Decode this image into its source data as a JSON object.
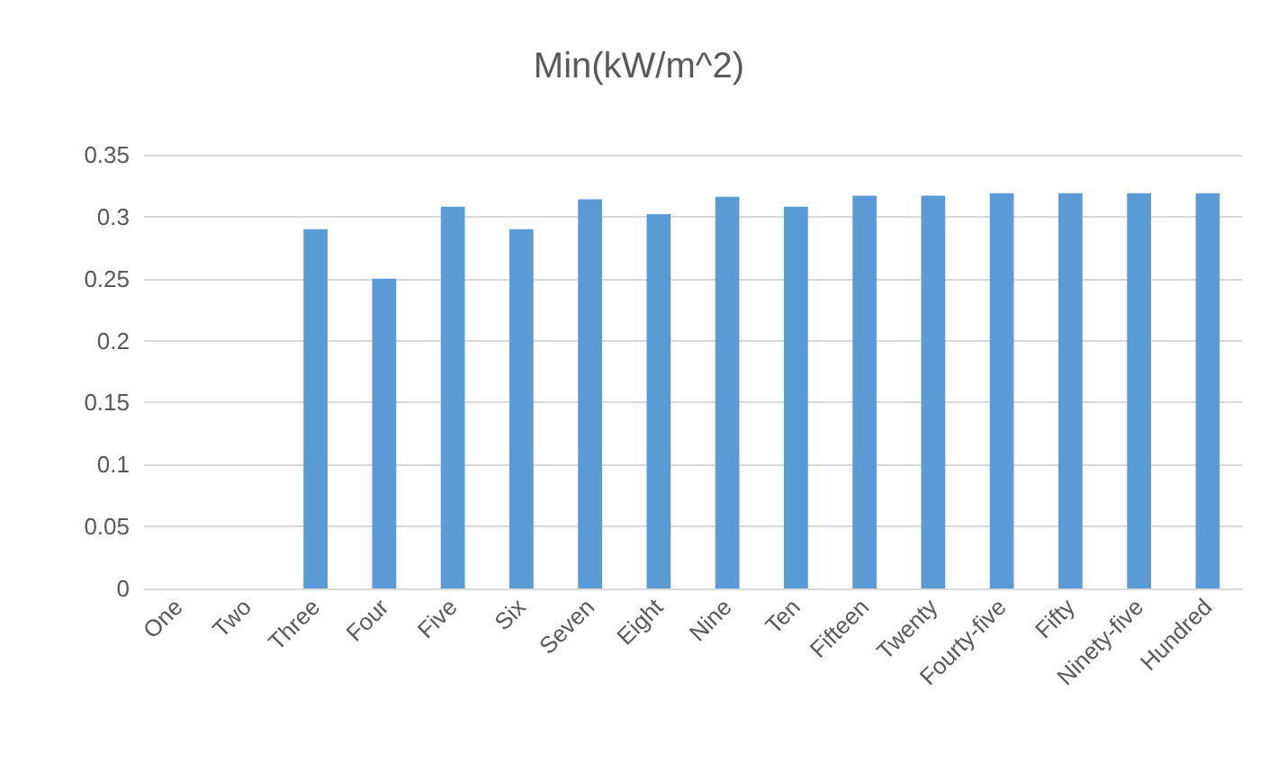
{
  "chart_data": {
    "type": "bar",
    "title": "Min(kW/m^2)",
    "categories": [
      "One",
      "Two",
      "Three",
      "Four",
      "Five",
      "Six",
      "Seven",
      "Eight",
      "Nine",
      "Ten",
      "Fifteen",
      "Twenty",
      "Fourty-five",
      "Fifty",
      "Ninety-five",
      "Hundred"
    ],
    "values": [
      null,
      null,
      0.29,
      0.25,
      0.308,
      0.29,
      0.314,
      0.302,
      0.316,
      0.308,
      0.317,
      0.317,
      0.319,
      0.319,
      0.319,
      0.319
    ],
    "color": "#5b9bd5",
    "ylim": [
      0,
      0.35
    ],
    "yticks": [
      0,
      0.05,
      0.1,
      0.15,
      0.2,
      0.25,
      0.3,
      0.35
    ],
    "grid": "y"
  }
}
